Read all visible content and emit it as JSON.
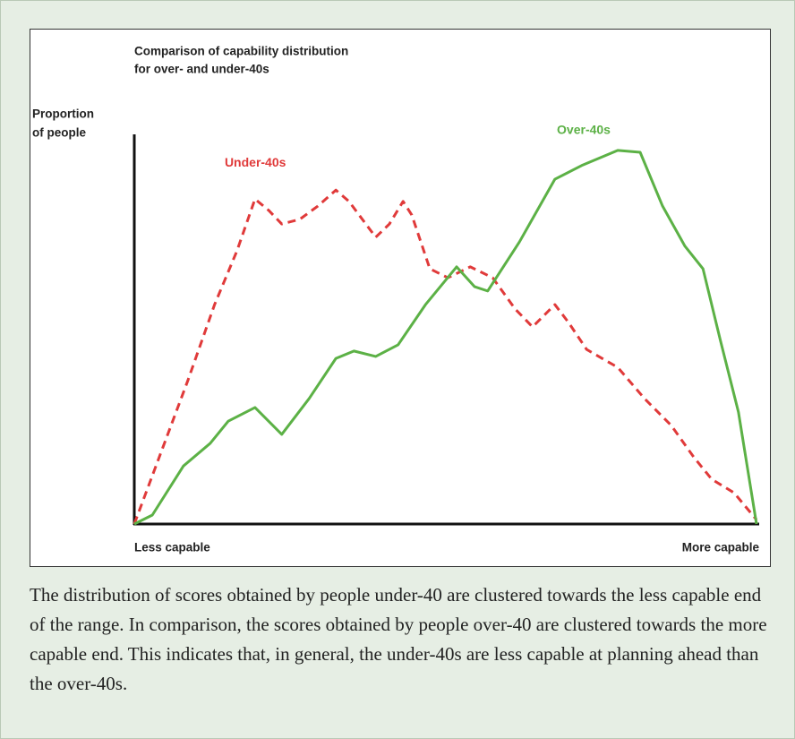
{
  "chart_data": {
    "type": "line",
    "title": [
      "Comparison of capability distribution",
      "for over- and under-40s"
    ],
    "y_label": [
      "Proportion",
      "of people"
    ],
    "x_label_left": "Less capable",
    "x_label_right": "More capable",
    "xlim": [
      0,
      100
    ],
    "ylim": [
      0,
      100
    ],
    "series": [
      {
        "name": "Under-40s",
        "color": "#e03a3a",
        "dashed": true,
        "x": [
          0,
          4.3,
          8.6,
          12.9,
          16.5,
          19.4,
          21.6,
          23.7,
          26.6,
          29.5,
          32.4,
          34.5,
          38.8,
          41.0,
          43.2,
          44.6,
          47.5,
          50.4,
          54.0,
          57.6,
          61.2,
          64.0,
          67.6,
          69.8,
          72.7,
          77.7,
          82.0,
          86.3,
          89.9,
          92.8,
          96.4,
          100
        ],
        "values": [
          0,
          18.4,
          36.8,
          56.3,
          70.1,
          83.4,
          80.5,
          77.0,
          78.2,
          81.6,
          85.7,
          82.8,
          73.6,
          77.0,
          82.8,
          79.3,
          65.5,
          63.2,
          66.0,
          63.2,
          55.2,
          50.6,
          56.3,
          51.7,
          44.8,
          40.2,
          32.2,
          25.3,
          17.2,
          11.5,
          8.0,
          1.1
        ]
      },
      {
        "name": "Over-40s",
        "color": "#5cb146",
        "dashed": false,
        "x": [
          0,
          2.9,
          7.9,
          12.2,
          15.1,
          19.4,
          23.7,
          28.1,
          32.4,
          35.3,
          38.8,
          42.4,
          46.8,
          51.8,
          54.7,
          56.8,
          61.9,
          67.6,
          71.9,
          77.7,
          81.3,
          84.9,
          88.5,
          91.4,
          94.2,
          97.1,
          100
        ],
        "values": [
          0,
          2.3,
          14.9,
          20.7,
          26.4,
          29.9,
          23.0,
          32.2,
          42.5,
          44.4,
          43.0,
          46.0,
          56.3,
          66.0,
          60.9,
          59.8,
          72.4,
          88.5,
          92.0,
          95.9,
          95.4,
          81.6,
          71.3,
          65.5,
          47.1,
          28.7,
          0
        ]
      }
    ]
  },
  "caption": "The distribution of scores obtained by people under-40 are clustered towards the less capable end of the range. In comparison, the scores obtained by people over-40 are clustered towards the more capable end. This indicates that, in general, the under-40s are less capable at planning ahead than the over-40s."
}
